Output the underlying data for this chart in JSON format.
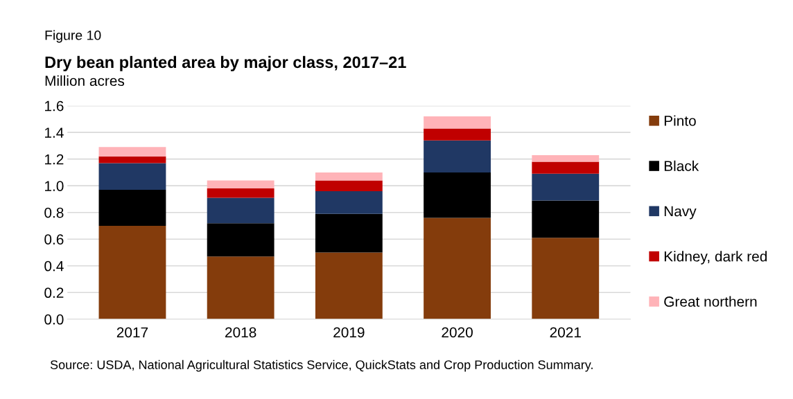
{
  "chart_data": {
    "type": "bar",
    "stacked": true,
    "title": "Dry bean planted area by major class, 2017–21",
    "ylabel": "Million acres",
    "annotations": [
      "Figure 10",
      "Source: USDA, National Agricultural Statistics Service, QuickStats and Crop Production Summary."
    ],
    "categories": [
      "2017",
      "2018",
      "2019",
      "2020",
      "2021"
    ],
    "series": [
      {
        "name": "Pinto",
        "color": "#843c0c",
        "values": [
          0.7,
          0.47,
          0.5,
          0.76,
          0.61
        ]
      },
      {
        "name": "Black",
        "color": "#000000",
        "values": [
          0.27,
          0.25,
          0.29,
          0.34,
          0.28
        ]
      },
      {
        "name": "Navy",
        "color": "#203864",
        "values": [
          0.2,
          0.19,
          0.17,
          0.24,
          0.2
        ]
      },
      {
        "name": "Kidney, dark red",
        "color": "#c00000",
        "values": [
          0.05,
          0.07,
          0.08,
          0.09,
          0.09
        ]
      },
      {
        "name": "Great northern",
        "color": "#ffb3b8",
        "values": [
          0.07,
          0.06,
          0.06,
          0.09,
          0.05
        ]
      }
    ],
    "ylim": [
      0,
      1.6
    ],
    "yticks": [
      {
        "value": 0,
        "label": "0.0"
      },
      0.2,
      0.4,
      0.6,
      0.8,
      {
        "value": 1,
        "label": "1.0"
      },
      1.2,
      1.4,
      1.6
    ],
    "grid": "y",
    "legend": "right"
  }
}
